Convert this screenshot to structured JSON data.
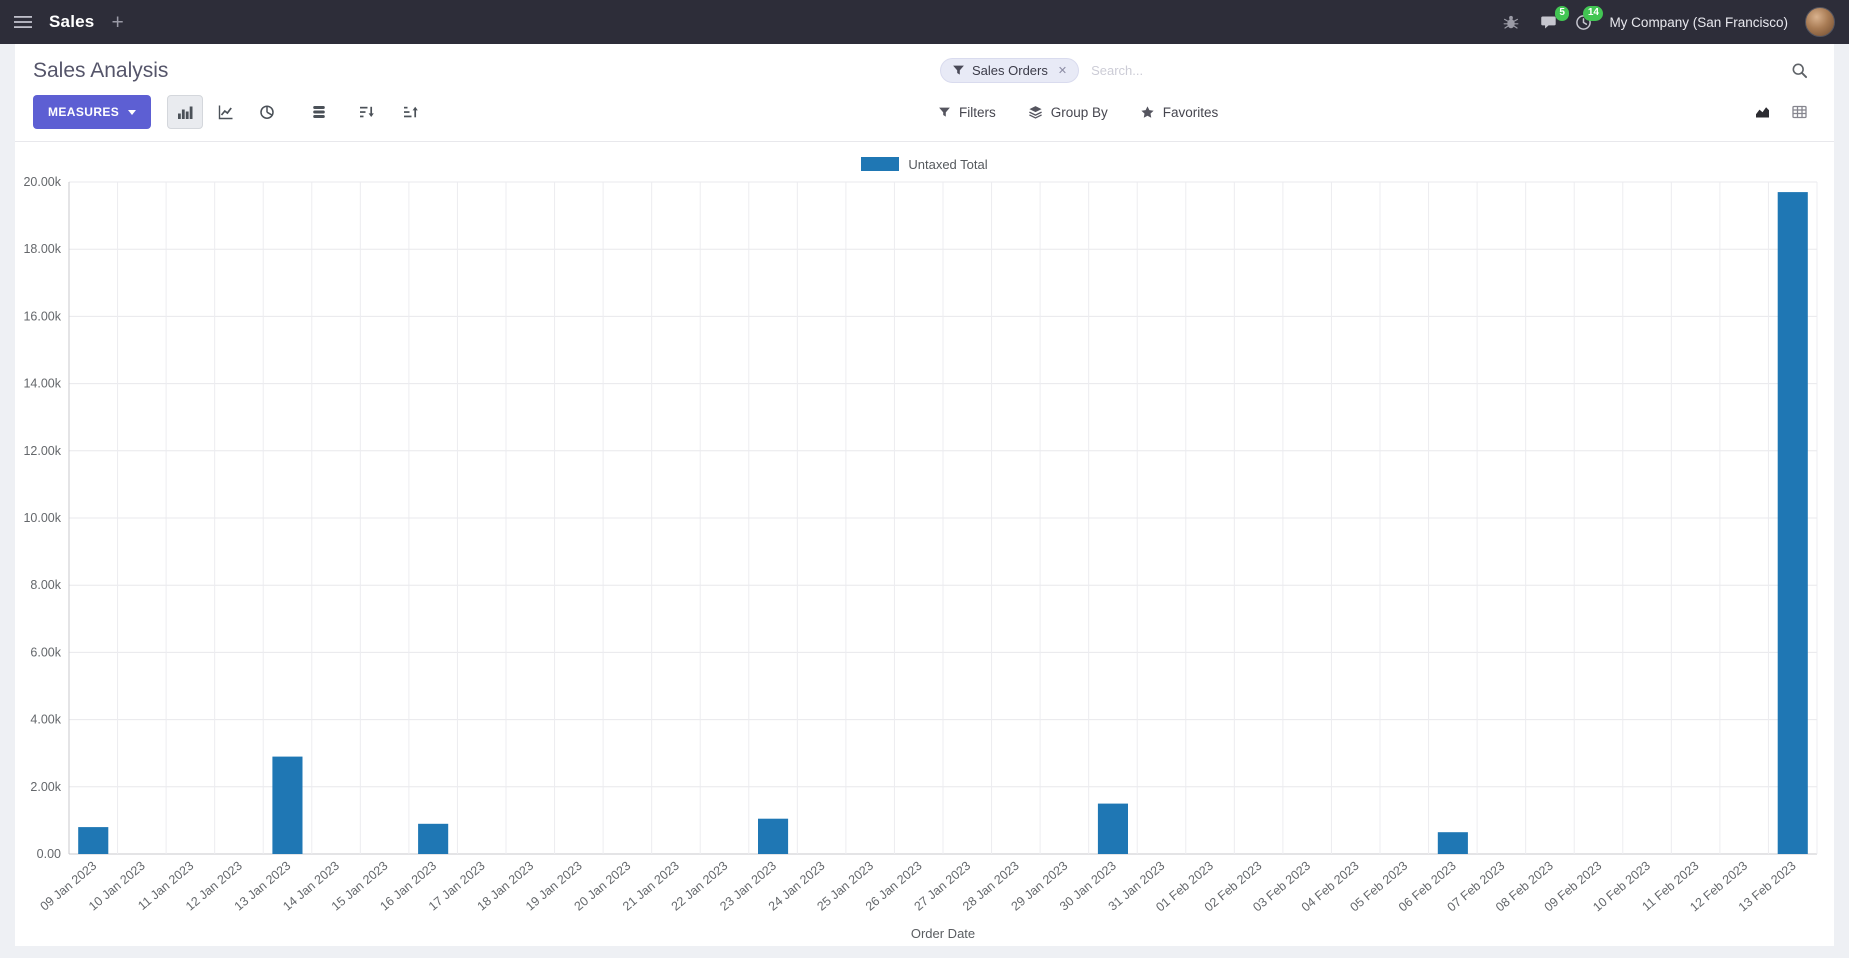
{
  "colors": {
    "accent": "#5D5FD3",
    "bar": "#1f77b4",
    "badge": "#42c553",
    "navbar": "#2d2d39"
  },
  "navbar": {
    "app_name": "Sales",
    "company": "My Company (San Francisco)",
    "messages_badge": "5",
    "activities_badge": "14"
  },
  "control_panel": {
    "title": "Sales Analysis",
    "measures_label": "MEASURES",
    "search": {
      "facet": "Sales Orders",
      "remove_facet": "✕",
      "placeholder": "Search..."
    },
    "filters_label": "Filters",
    "group_by_label": "Group By",
    "favorites_label": "Favorites"
  },
  "icons": {
    "apps_menu": "hamburger",
    "new_tab": "plus",
    "debug": "bug",
    "messages": "chat-bubble",
    "activities": "clock",
    "search": "magnifier",
    "filter": "funnel",
    "group_by": "layers",
    "favorites": "star",
    "chart_bar": "bar-chart",
    "chart_line": "line-chart",
    "chart_pie": "pie-chart",
    "stacked": "stacked-bars",
    "sort_desc": "sort-descending",
    "sort_asc": "sort-ascending",
    "view_graph": "area-chart",
    "view_pivot": "table-grid"
  },
  "chart_data": {
    "type": "bar",
    "title": "",
    "xlabel": "Order Date",
    "ylabel": "",
    "ylim": [
      0,
      20000
    ],
    "ytick_step": 2000,
    "ytick_labels": [
      "0.00",
      "2.00k",
      "4.00k",
      "6.00k",
      "8.00k",
      "10.00k",
      "12.00k",
      "14.00k",
      "16.00k",
      "18.00k",
      "20.00k"
    ],
    "grid": true,
    "legend_position": "top",
    "categories": [
      "09 Jan 2023",
      "10 Jan 2023",
      "11 Jan 2023",
      "12 Jan 2023",
      "13 Jan 2023",
      "14 Jan 2023",
      "15 Jan 2023",
      "16 Jan 2023",
      "17 Jan 2023",
      "18 Jan 2023",
      "19 Jan 2023",
      "20 Jan 2023",
      "21 Jan 2023",
      "22 Jan 2023",
      "23 Jan 2023",
      "24 Jan 2023",
      "25 Jan 2023",
      "26 Jan 2023",
      "27 Jan 2023",
      "28 Jan 2023",
      "29 Jan 2023",
      "30 Jan 2023",
      "31 Jan 2023",
      "01 Feb 2023",
      "02 Feb 2023",
      "03 Feb 2023",
      "04 Feb 2023",
      "05 Feb 2023",
      "06 Feb 2023",
      "07 Feb 2023",
      "08 Feb 2023",
      "09 Feb 2023",
      "10 Feb 2023",
      "11 Feb 2023",
      "12 Feb 2023",
      "13 Feb 2023"
    ],
    "series": [
      {
        "name": "Untaxed Total",
        "color": "#1f77b4",
        "values": [
          800,
          0,
          0,
          0,
          2900,
          0,
          0,
          900,
          0,
          0,
          0,
          0,
          0,
          0,
          1050,
          0,
          0,
          0,
          0,
          0,
          0,
          1500,
          0,
          0,
          0,
          0,
          0,
          0,
          650,
          0,
          0,
          0,
          0,
          0,
          0,
          19700
        ]
      }
    ]
  }
}
